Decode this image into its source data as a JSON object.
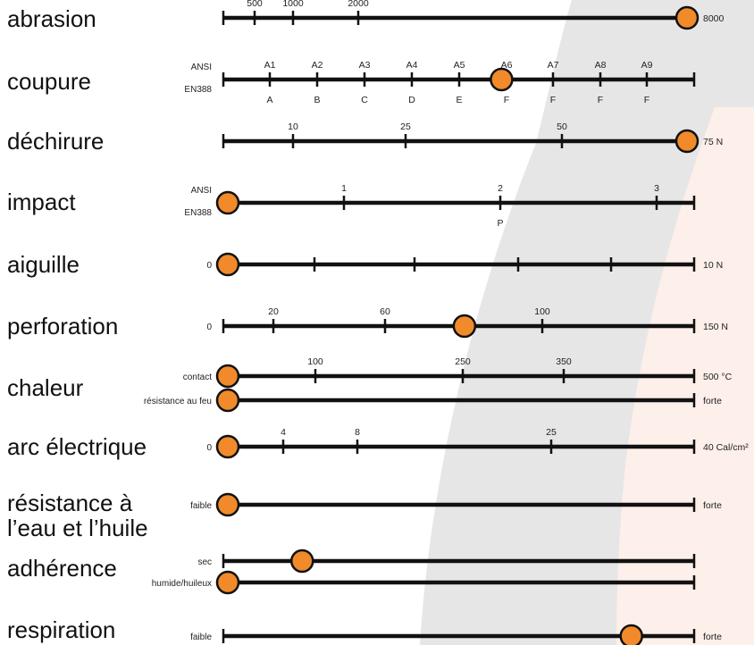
{
  "colors": {
    "marker": "#F08A2A",
    "line": "#111111",
    "bg_gray": "#E6E6E6",
    "bg_peach": "#FDEFEA"
  },
  "scale_min_line_value": 0,
  "rows": [
    {
      "name": "abrasion",
      "title_lines": [
        "abrasion"
      ],
      "left_labels": [],
      "end_label": "8000",
      "ticks": [
        {
          "top": "500"
        },
        {
          "top": "1000"
        },
        {
          "top": "2000"
        }
      ],
      "marker_level": 1.0
    },
    {
      "name": "coupure",
      "title_lines": [
        "coupure"
      ],
      "left_labels": [
        "ANSI",
        "EN388"
      ],
      "end_label": "",
      "ticks": [
        {
          "top": "A1",
          "bottom": "A"
        },
        {
          "top": "A2",
          "bottom": "B"
        },
        {
          "top": "A3",
          "bottom": "C"
        },
        {
          "top": "A4",
          "bottom": "D"
        },
        {
          "top": "A5",
          "bottom": "E"
        },
        {
          "top": "A6",
          "bottom": "F"
        },
        {
          "top": "A7",
          "bottom": "F"
        },
        {
          "top": "A8",
          "bottom": "F"
        },
        {
          "top": "A9",
          "bottom": "F"
        }
      ],
      "marker_level": 0.6
    },
    {
      "name": "dechirure",
      "title_lines": [
        "déchirure"
      ],
      "left_labels": [],
      "end_label": "75 N",
      "ticks": [
        {
          "top": "10"
        },
        {
          "top": "25"
        },
        {
          "top": "50"
        }
      ],
      "marker_level": 1.0
    },
    {
      "name": "impact",
      "title_lines": [
        "impact"
      ],
      "left_labels": [
        "ANSI",
        "EN388"
      ],
      "end_label": "",
      "ticks": [
        {
          "top": "1"
        },
        {
          "top": "2",
          "bottom": "P"
        },
        {
          "top": "3"
        }
      ],
      "marker_level": 0.0
    },
    {
      "name": "aiguille",
      "title_lines": [
        "aiguille"
      ],
      "left_labels": [
        "0"
      ],
      "end_label": "10 N",
      "ticks": [
        {},
        {},
        {},
        {}
      ],
      "marker_level": 0.0
    },
    {
      "name": "perforation",
      "title_lines": [
        "perforation"
      ],
      "left_labels": [
        "0"
      ],
      "end_label": "150 N",
      "ticks": [
        {
          "top": "20"
        },
        {
          "top": "60"
        },
        {
          "top": "100"
        }
      ],
      "marker_level": 0.52
    },
    {
      "name": "chaleur",
      "title_lines": [
        "chaleur"
      ],
      "sub_rows": [
        {
          "name": "chaleur-contact",
          "left_labels": [
            "contact"
          ],
          "end_label": "500 °C",
          "ticks": [
            {
              "top": "100"
            },
            {
              "top": "250"
            },
            {
              "top": "350"
            }
          ],
          "marker_level": 0.0
        },
        {
          "name": "chaleur-feu",
          "left_labels": [
            "résistance au feu"
          ],
          "end_label": "forte",
          "ticks": [],
          "marker_level": 0.0
        }
      ]
    },
    {
      "name": "arc-electrique",
      "title_lines": [
        "arc électrique"
      ],
      "left_labels": [
        "0"
      ],
      "end_label": "40 Cal/cm²",
      "ticks": [
        {
          "top": "4"
        },
        {
          "top": "8"
        },
        {
          "top": "25"
        }
      ],
      "marker_level": 0.0
    },
    {
      "name": "resistance-eau-huile",
      "title_lines": [
        "résistance à",
        "l’eau et l’huile"
      ],
      "left_labels": [
        "faible"
      ],
      "end_label": "forte",
      "ticks": [],
      "marker_level": 0.0
    },
    {
      "name": "adherence",
      "title_lines": [
        "adhérence"
      ],
      "sub_rows": [
        {
          "name": "adherence-sec",
          "left_labels": [
            "sec"
          ],
          "end_label": "",
          "ticks": [],
          "marker_level": 0.17
        },
        {
          "name": "adherence-humide",
          "left_labels": [
            "humide/huileux"
          ],
          "end_label": "",
          "ticks": [],
          "marker_level": 0.0
        }
      ]
    },
    {
      "name": "respiration",
      "title_lines": [
        "respiration"
      ],
      "left_labels": [
        "faible"
      ],
      "end_label": "forte",
      "ticks": [],
      "marker_level": 0.88
    }
  ]
}
